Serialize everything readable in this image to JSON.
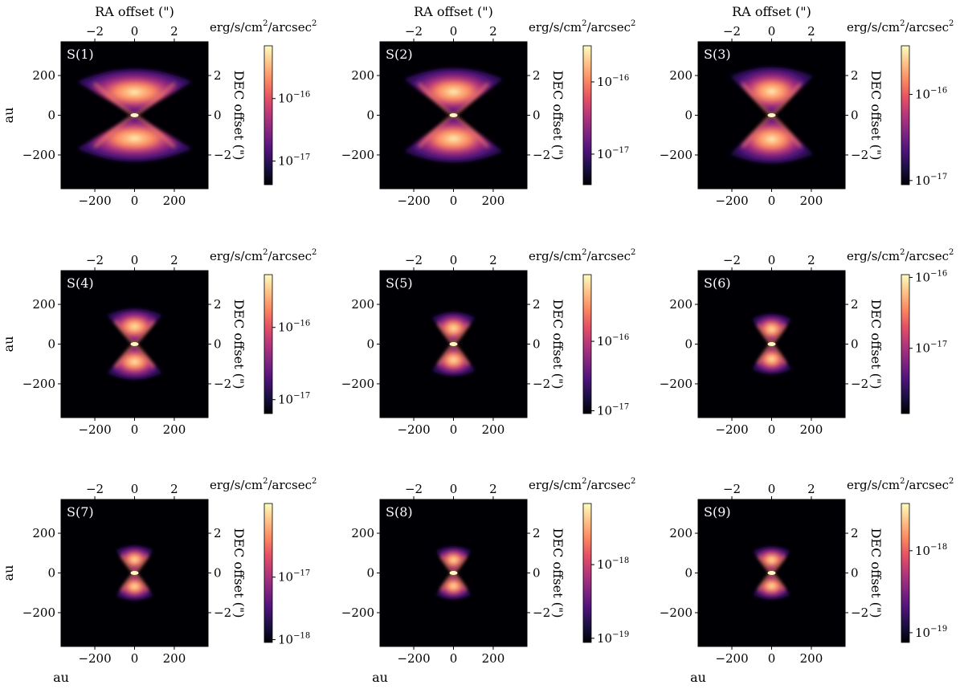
{
  "figure": {
    "units_label": "erg/s/cm",
    "units_label_sup": "2",
    "units_label_tail": "/arcsec",
    "units_label_sup2": "2",
    "top_axis_label": "RA offset (\")",
    "right_axis_label": "DEC offset (\")",
    "left_axis_label": "au",
    "bottom_axis_label": "au"
  },
  "colors": {
    "background": "#000004",
    "cmap": [
      "#000004",
      "#1c1044",
      "#4f127b",
      "#812581",
      "#b5367a",
      "#e55064",
      "#fb8761",
      "#fec287",
      "#fcfdbf"
    ]
  },
  "chart_data": [
    {
      "type": "heatmap",
      "label": "S(1)",
      "xlim": [
        -370,
        370
      ],
      "ylim": [
        -370,
        370
      ],
      "x_ticks": [
        -200,
        0,
        200
      ],
      "y_ticks": [
        -200,
        0,
        200
      ],
      "top_ticks": [
        "−2",
        "0",
        "2"
      ],
      "right_ticks": [
        "−2",
        "0",
        "2"
      ],
      "top_tick_values": [
        -2,
        0,
        2
      ],
      "right_tick_values": [
        -2,
        0,
        2
      ],
      "cbar_ticks": [
        {
          "base": "10",
          "exp": "−16",
          "frac": 0.62
        },
        {
          "base": "10",
          "exp": "−17",
          "frac": 0.17
        }
      ],
      "extent_au": 290,
      "height_au": 260,
      "opening": 1.0
    },
    {
      "type": "heatmap",
      "label": "S(2)",
      "xlim": [
        -370,
        370
      ],
      "ylim": [
        -370,
        370
      ],
      "x_ticks": [
        -200,
        0,
        200
      ],
      "y_ticks": [
        -200,
        0,
        200
      ],
      "top_ticks": [
        "−2",
        "0",
        "2"
      ],
      "right_ticks": [
        "−2",
        "0",
        "2"
      ],
      "top_tick_values": [
        -2,
        0,
        2
      ],
      "right_tick_values": [
        -2,
        0,
        2
      ],
      "cbar_ticks": [
        {
          "base": "10",
          "exp": "−16",
          "frac": 0.74
        },
        {
          "base": "10",
          "exp": "−17",
          "frac": 0.22
        }
      ],
      "extent_au": 250,
      "height_au": 260,
      "opening": 0.85
    },
    {
      "type": "heatmap",
      "label": "S(3)",
      "xlim": [
        -370,
        370
      ],
      "ylim": [
        -370,
        370
      ],
      "x_ticks": [
        -200,
        0,
        200
      ],
      "y_ticks": [
        -200,
        0,
        200
      ],
      "top_ticks": [
        "−2",
        "0",
        "2"
      ],
      "right_ticks": [
        "−2",
        "0",
        "2"
      ],
      "top_tick_values": [
        -2,
        0,
        2
      ],
      "right_tick_values": [
        -2,
        0,
        2
      ],
      "cbar_ticks": [
        {
          "base": "10",
          "exp": "−16",
          "frac": 0.65
        },
        {
          "base": "10",
          "exp": "−17",
          "frac": 0.03
        }
      ],
      "extent_au": 210,
      "height_au": 260,
      "opening": 0.7
    },
    {
      "type": "heatmap",
      "label": "S(4)",
      "xlim": [
        -370,
        370
      ],
      "ylim": [
        -370,
        370
      ],
      "x_ticks": [
        -200,
        0,
        200
      ],
      "y_ticks": [
        -200,
        0,
        200
      ],
      "top_ticks": [
        "−2",
        "0",
        "2"
      ],
      "right_ticks": [
        "−2",
        "0",
        "2"
      ],
      "top_tick_values": [
        -2,
        0,
        2
      ],
      "right_tick_values": [
        -2,
        0,
        2
      ],
      "cbar_ticks": [
        {
          "base": "10",
          "exp": "−16",
          "frac": 0.62
        },
        {
          "base": "10",
          "exp": "−17",
          "frac": 0.1
        }
      ],
      "extent_au": 140,
      "height_au": 190,
      "opening": 0.65
    },
    {
      "type": "heatmap",
      "label": "S(5)",
      "xlim": [
        -370,
        370
      ],
      "ylim": [
        -370,
        370
      ],
      "x_ticks": [
        -200,
        0,
        200
      ],
      "y_ticks": [
        -200,
        0,
        200
      ],
      "top_ticks": [
        "−2",
        "0",
        "2"
      ],
      "right_ticks": [
        "−2",
        "0",
        "2"
      ],
      "top_tick_values": [
        -2,
        0,
        2
      ],
      "right_tick_values": [
        -2,
        0,
        2
      ],
      "cbar_ticks": [
        {
          "base": "10",
          "exp": "−16",
          "frac": 0.52
        },
        {
          "base": "10",
          "exp": "−17",
          "frac": 0.02
        }
      ],
      "extent_au": 110,
      "height_au": 170,
      "opening": 0.6
    },
    {
      "type": "heatmap",
      "label": "S(6)",
      "xlim": [
        -370,
        370
      ],
      "ylim": [
        -370,
        370
      ],
      "x_ticks": [
        -200,
        0,
        200
      ],
      "y_ticks": [
        -200,
        0,
        200
      ],
      "top_ticks": [
        "−2",
        "0",
        "2"
      ],
      "right_ticks": [
        "−2",
        "0",
        "2"
      ],
      "top_tick_values": [
        -2,
        0,
        2
      ],
      "right_tick_values": [
        -2,
        0,
        2
      ],
      "cbar_ticks": [
        {
          "base": "10",
          "exp": "−16",
          "frac": 0.98
        },
        {
          "base": "10",
          "exp": "−17",
          "frac": 0.47
        }
      ],
      "extent_au": 100,
      "height_au": 160,
      "opening": 0.6
    },
    {
      "type": "heatmap",
      "label": "S(7)",
      "xlim": [
        -370,
        370
      ],
      "ylim": [
        -370,
        370
      ],
      "x_ticks": [
        -200,
        0,
        200
      ],
      "y_ticks": [
        -200,
        0,
        200
      ],
      "top_ticks": [
        "−2",
        "0",
        "2"
      ],
      "right_ticks": [
        "−2",
        "0",
        "2"
      ],
      "top_tick_values": [
        -2,
        0,
        2
      ],
      "right_tick_values": [
        -2,
        0,
        2
      ],
      "cbar_ticks": [
        {
          "base": "10",
          "exp": "−17",
          "frac": 0.47
        },
        {
          "base": "10",
          "exp": "−18",
          "frac": 0.02
        }
      ],
      "extent_au": 95,
      "height_au": 145,
      "opening": 0.6
    },
    {
      "type": "heatmap",
      "label": "S(8)",
      "xlim": [
        -370,
        370
      ],
      "ylim": [
        -370,
        370
      ],
      "x_ticks": [
        -200,
        0,
        200
      ],
      "y_ticks": [
        -200,
        0,
        200
      ],
      "top_ticks": [
        "−2",
        "0",
        "2"
      ],
      "right_ticks": [
        "−2",
        "0",
        "2"
      ],
      "top_tick_values": [
        -2,
        0,
        2
      ],
      "right_tick_values": [
        -2,
        0,
        2
      ],
      "cbar_ticks": [
        {
          "base": "10",
          "exp": "−18",
          "frac": 0.56
        },
        {
          "base": "10",
          "exp": "−19",
          "frac": 0.03
        }
      ],
      "extent_au": 90,
      "height_au": 140,
      "opening": 0.6
    },
    {
      "type": "heatmap",
      "label": "S(9)",
      "xlim": [
        -370,
        370
      ],
      "ylim": [
        -370,
        370
      ],
      "x_ticks": [
        -200,
        0,
        200
      ],
      "y_ticks": [
        -200,
        0,
        200
      ],
      "top_ticks": [
        "−2",
        "0",
        "2"
      ],
      "right_ticks": [
        "−2",
        "0",
        "2"
      ],
      "top_tick_values": [
        -2,
        0,
        2
      ],
      "right_tick_values": [
        -2,
        0,
        2
      ],
      "cbar_ticks": [
        {
          "base": "10",
          "exp": "−18",
          "frac": 0.66
        },
        {
          "base": "10",
          "exp": "−19",
          "frac": 0.07
        }
      ],
      "extent_au": 95,
      "height_au": 140,
      "opening": 0.6
    }
  ]
}
